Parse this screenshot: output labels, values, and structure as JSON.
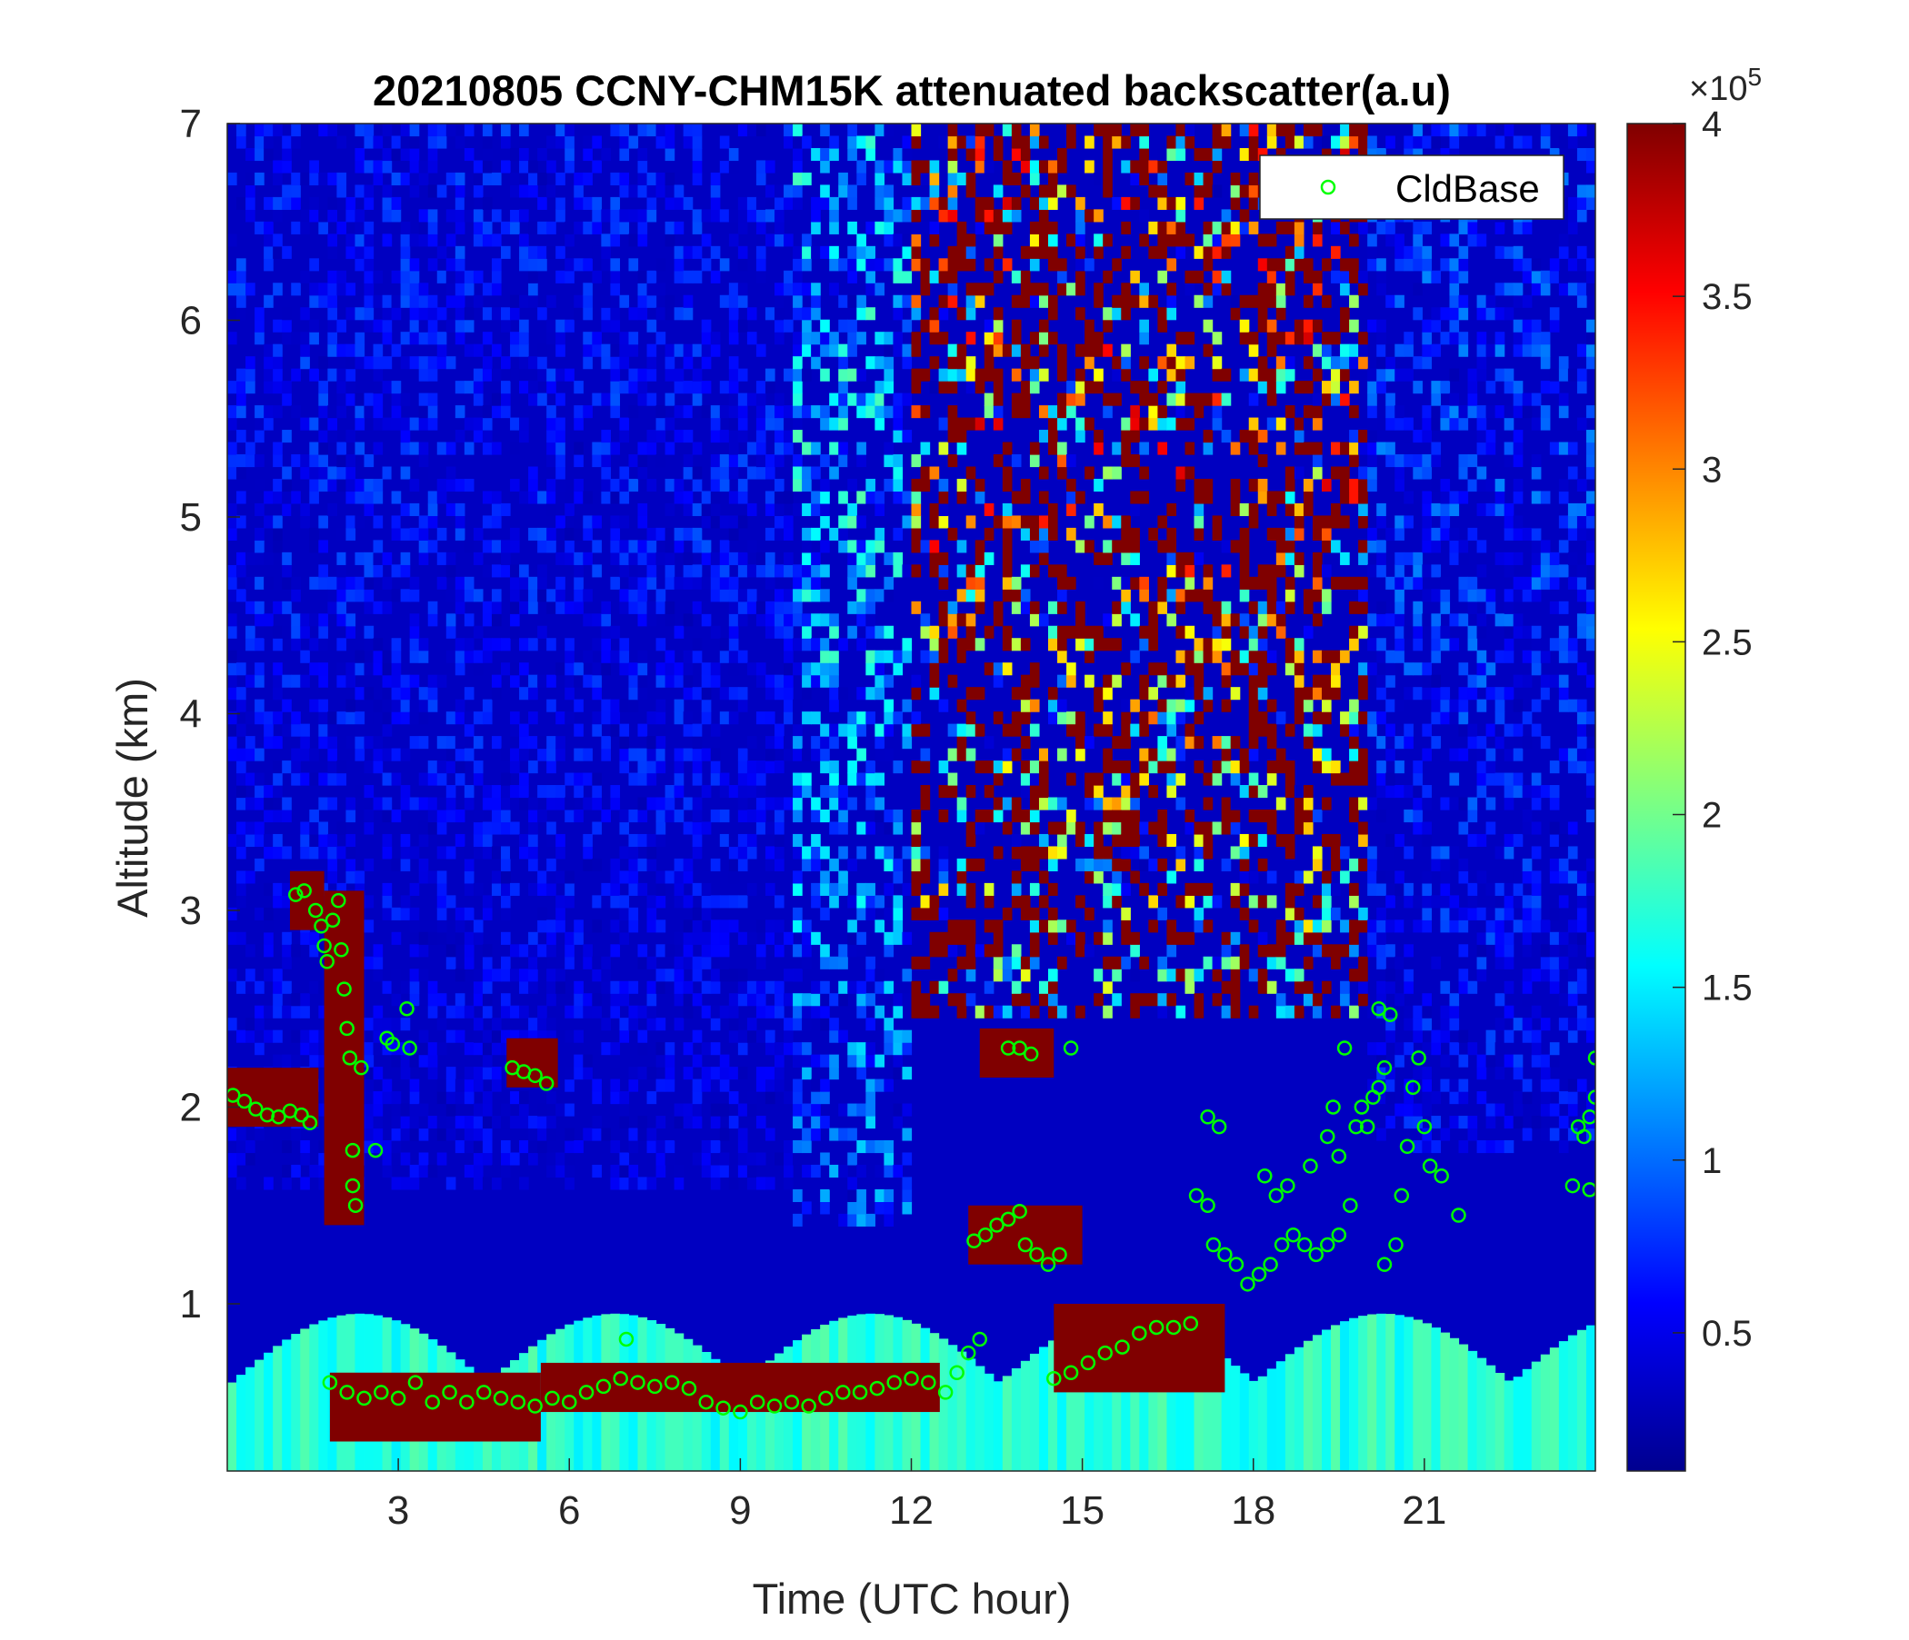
{
  "chart_data": {
    "type": "heatmap",
    "title": "20210805 CCNY-CHM15K attenuated backscatter(a.u)",
    "xlabel": "Time (UTC hour)",
    "ylabel": "Altitude (km)",
    "xlim": [
      0,
      24
    ],
    "ylim": [
      0.15,
      7
    ],
    "x_ticks": [
      3,
      6,
      9,
      12,
      15,
      18,
      21
    ],
    "y_ticks": [
      1,
      2,
      3,
      4,
      5,
      6,
      7
    ],
    "colorbar": {
      "colormap": "jet",
      "range": [
        0.1,
        4
      ],
      "ticks": [
        0.5,
        1,
        1.5,
        2,
        2.5,
        3,
        3.5,
        4
      ],
      "exponent_label": "×10",
      "exponent_power": "5"
    },
    "legend": {
      "position": "top-right",
      "entries": [
        "CldBase"
      ]
    },
    "layers": {
      "noisy_upper_air": [
        {
          "t_start": 0,
          "t_end": 10,
          "z_start": 1.6,
          "z_end": 7,
          "level": 0.6
        },
        {
          "t_start": 10,
          "t_end": 12,
          "z_start": 1.4,
          "z_end": 7,
          "level": 1.6
        },
        {
          "t_start": 12,
          "t_end": 20,
          "z_start": 2.5,
          "z_end": 7,
          "level": 3.4
        },
        {
          "t_start": 20,
          "t_end": 24,
          "z_start": 1.8,
          "z_end": 7,
          "level": 0.8
        }
      ],
      "boundary_layer_base": {
        "z_start": 0.15,
        "z_end": 0.6,
        "level": 1.5
      },
      "strong_layers": [
        {
          "t_start": 1.1,
          "t_end": 1.7,
          "z_top": 3.2,
          "z_bottom": 2.9
        },
        {
          "t_start": 1.7,
          "t_end": 2.4,
          "z_top": 3.1,
          "z_bottom": 1.4
        },
        {
          "t_start": 0,
          "t_end": 1.6,
          "z_top": 2.2,
          "z_bottom": 1.9
        },
        {
          "t_start": 4.9,
          "t_end": 5.8,
          "z_top": 2.35,
          "z_bottom": 2.1
        },
        {
          "t_start": 1.8,
          "t_end": 5.5,
          "z_top": 0.65,
          "z_bottom": 0.3
        },
        {
          "t_start": 5.5,
          "t_end": 12.5,
          "z_top": 0.7,
          "z_bottom": 0.45
        },
        {
          "t_start": 13.2,
          "t_end": 14.5,
          "z_top": 2.4,
          "z_bottom": 2.15
        },
        {
          "t_start": 13.0,
          "t_end": 15.0,
          "z_top": 1.5,
          "z_bottom": 1.2
        },
        {
          "t_start": 14.5,
          "t_end": 17.5,
          "z_top": 1.0,
          "z_bottom": 0.55
        }
      ]
    },
    "series": [
      {
        "name": "CldBase",
        "color": "#00ff00",
        "marker": "circle-open",
        "points": [
          [
            0.1,
            2.06
          ],
          [
            0.3,
            2.03
          ],
          [
            0.5,
            1.99
          ],
          [
            0.7,
            1.96
          ],
          [
            0.9,
            1.95
          ],
          [
            1.1,
            1.98
          ],
          [
            1.3,
            1.96
          ],
          [
            1.45,
            1.92
          ],
          [
            1.2,
            3.08
          ],
          [
            1.35,
            3.1
          ],
          [
            1.55,
            3.0
          ],
          [
            1.65,
            2.92
          ],
          [
            1.7,
            2.82
          ],
          [
            1.75,
            2.74
          ],
          [
            1.85,
            2.95
          ],
          [
            1.95,
            3.05
          ],
          [
            2.0,
            2.8
          ],
          [
            2.05,
            2.6
          ],
          [
            2.1,
            2.4
          ],
          [
            2.15,
            2.25
          ],
          [
            2.2,
            1.78
          ],
          [
            2.2,
            1.6
          ],
          [
            2.25,
            1.5
          ],
          [
            2.35,
            2.2
          ],
          [
            2.6,
            1.78
          ],
          [
            2.8,
            2.35
          ],
          [
            2.9,
            2.32
          ],
          [
            3.15,
            2.5
          ],
          [
            3.2,
            2.3
          ],
          [
            5.0,
            2.2
          ],
          [
            5.2,
            2.18
          ],
          [
            5.4,
            2.16
          ],
          [
            5.6,
            2.12
          ],
          [
            1.8,
            0.6
          ],
          [
            2.1,
            0.55
          ],
          [
            2.4,
            0.52
          ],
          [
            2.7,
            0.55
          ],
          [
            3.0,
            0.52
          ],
          [
            3.3,
            0.6
          ],
          [
            3.6,
            0.5
          ],
          [
            3.9,
            0.55
          ],
          [
            4.2,
            0.5
          ],
          [
            4.5,
            0.55
          ],
          [
            4.8,
            0.52
          ],
          [
            5.1,
            0.5
          ],
          [
            5.4,
            0.48
          ],
          [
            5.7,
            0.52
          ],
          [
            6.0,
            0.5
          ],
          [
            6.3,
            0.55
          ],
          [
            6.6,
            0.58
          ],
          [
            6.9,
            0.62
          ],
          [
            7.0,
            0.82
          ],
          [
            7.2,
            0.6
          ],
          [
            7.5,
            0.58
          ],
          [
            7.8,
            0.6
          ],
          [
            8.1,
            0.57
          ],
          [
            8.4,
            0.5
          ],
          [
            8.7,
            0.47
          ],
          [
            9.0,
            0.45
          ],
          [
            9.3,
            0.5
          ],
          [
            9.6,
            0.48
          ],
          [
            9.9,
            0.5
          ],
          [
            10.2,
            0.48
          ],
          [
            10.5,
            0.52
          ],
          [
            10.8,
            0.55
          ],
          [
            11.1,
            0.55
          ],
          [
            11.4,
            0.57
          ],
          [
            11.7,
            0.6
          ],
          [
            12.0,
            0.62
          ],
          [
            12.3,
            0.6
          ],
          [
            12.6,
            0.55
          ],
          [
            12.8,
            0.65
          ],
          [
            13.0,
            0.75
          ],
          [
            13.2,
            0.82
          ],
          [
            13.1,
            1.32
          ],
          [
            13.3,
            1.35
          ],
          [
            13.5,
            1.4
          ],
          [
            13.7,
            1.43
          ],
          [
            13.9,
            1.47
          ],
          [
            14.0,
            1.3
          ],
          [
            14.2,
            1.25
          ],
          [
            14.4,
            1.2
          ],
          [
            14.6,
            1.25
          ],
          [
            13.7,
            2.3
          ],
          [
            13.9,
            2.3
          ],
          [
            14.1,
            2.27
          ],
          [
            14.8,
            2.3
          ],
          [
            14.5,
            0.62
          ],
          [
            14.8,
            0.65
          ],
          [
            15.1,
            0.7
          ],
          [
            15.4,
            0.75
          ],
          [
            15.7,
            0.78
          ],
          [
            16.0,
            0.85
          ],
          [
            16.3,
            0.88
          ],
          [
            16.6,
            0.88
          ],
          [
            16.9,
            0.9
          ],
          [
            17.0,
            1.55
          ],
          [
            17.2,
            1.5
          ],
          [
            17.3,
            1.3
          ],
          [
            17.5,
            1.25
          ],
          [
            17.7,
            1.2
          ],
          [
            17.9,
            1.1
          ],
          [
            18.1,
            1.15
          ],
          [
            18.3,
            1.2
          ],
          [
            18.5,
            1.3
          ],
          [
            18.7,
            1.35
          ],
          [
            18.9,
            1.3
          ],
          [
            19.1,
            1.25
          ],
          [
            19.3,
            1.3
          ],
          [
            19.5,
            1.35
          ],
          [
            17.2,
            1.95
          ],
          [
            17.4,
            1.9
          ],
          [
            18.2,
            1.65
          ],
          [
            18.4,
            1.55
          ],
          [
            18.6,
            1.6
          ],
          [
            19.0,
            1.7
          ],
          [
            19.3,
            1.85
          ],
          [
            19.4,
            2.0
          ],
          [
            19.5,
            1.75
          ],
          [
            19.7,
            1.5
          ],
          [
            19.8,
            1.9
          ],
          [
            19.9,
            2.0
          ],
          [
            20.0,
            1.9
          ],
          [
            20.1,
            2.05
          ],
          [
            20.2,
            2.1
          ],
          [
            20.3,
            2.2
          ],
          [
            19.6,
            2.3
          ],
          [
            20.2,
            2.5
          ],
          [
            20.4,
            2.47
          ],
          [
            20.3,
            1.2
          ],
          [
            20.5,
            1.3
          ],
          [
            20.6,
            1.55
          ],
          [
            20.7,
            1.8
          ],
          [
            20.8,
            2.1
          ],
          [
            20.9,
            2.25
          ],
          [
            21.0,
            1.9
          ],
          [
            21.1,
            1.7
          ],
          [
            21.3,
            1.65
          ],
          [
            21.6,
            1.45
          ],
          [
            23.6,
            1.6
          ],
          [
            23.7,
            1.9
          ],
          [
            23.8,
            1.85
          ],
          [
            23.9,
            1.95
          ],
          [
            24.0,
            2.05
          ],
          [
            23.9,
            1.58
          ],
          [
            24.0,
            2.25
          ]
        ]
      }
    ]
  }
}
